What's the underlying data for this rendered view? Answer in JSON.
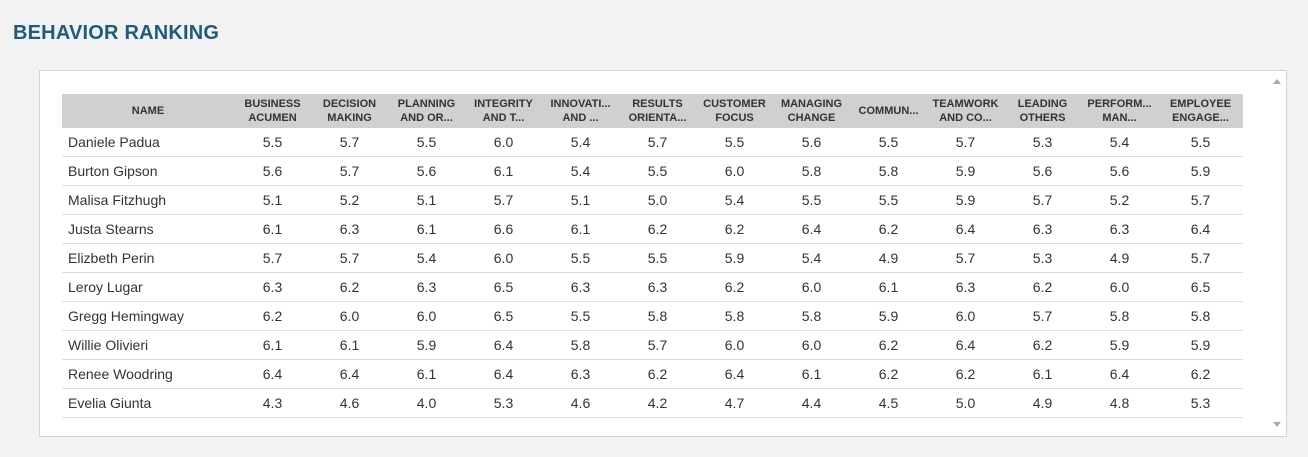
{
  "page": {
    "title": "BEHAVIOR RANKING"
  },
  "table": {
    "columns": [
      "NAME",
      "BUSINESS\nACUMEN",
      "DECISION\nMAKING",
      "PLANNING\nAND OR...",
      "INTEGRITY\nAND T...",
      "INNOVATI...\nAND ...",
      "RESULTS\nORIENTA...",
      "CUSTOMER\nFOCUS",
      "MANAGING\nCHANGE",
      "COMMUN...",
      "TEAMWORK\nAND CO...",
      "LEADING\nOTHERS",
      "PERFORM...\nMAN...",
      "EMPLOYEE\nENGAGE..."
    ],
    "rows": [
      [
        "Daniele Padua",
        "5.5",
        "5.7",
        "5.5",
        "6.0",
        "5.4",
        "5.7",
        "5.5",
        "5.6",
        "5.5",
        "5.7",
        "5.3",
        "5.4",
        "5.5"
      ],
      [
        "Burton Gipson",
        "5.6",
        "5.7",
        "5.6",
        "6.1",
        "5.4",
        "5.5",
        "6.0",
        "5.8",
        "5.8",
        "5.9",
        "5.6",
        "5.6",
        "5.9"
      ],
      [
        "Malisa Fitzhugh",
        "5.1",
        "5.2",
        "5.1",
        "5.7",
        "5.1",
        "5.0",
        "5.4",
        "5.5",
        "5.5",
        "5.9",
        "5.7",
        "5.2",
        "5.7"
      ],
      [
        "Justa Stearns",
        "6.1",
        "6.3",
        "6.1",
        "6.6",
        "6.1",
        "6.2",
        "6.2",
        "6.4",
        "6.2",
        "6.4",
        "6.3",
        "6.3",
        "6.4"
      ],
      [
        "Elizbeth Perin",
        "5.7",
        "5.7",
        "5.4",
        "6.0",
        "5.5",
        "5.5",
        "5.9",
        "5.4",
        "4.9",
        "5.7",
        "5.3",
        "4.9",
        "5.7"
      ],
      [
        "Leroy Lugar",
        "6.3",
        "6.2",
        "6.3",
        "6.5",
        "6.3",
        "6.3",
        "6.2",
        "6.0",
        "6.1",
        "6.3",
        "6.2",
        "6.0",
        "6.5"
      ],
      [
        "Gregg Hemingway",
        "6.2",
        "6.0",
        "6.0",
        "6.5",
        "5.5",
        "5.8",
        "5.8",
        "5.8",
        "5.9",
        "6.0",
        "5.7",
        "5.8",
        "5.8"
      ],
      [
        "Willie Olivieri",
        "6.1",
        "6.1",
        "5.9",
        "6.4",
        "5.8",
        "5.7",
        "6.0",
        "6.0",
        "6.2",
        "6.4",
        "6.2",
        "5.9",
        "5.9"
      ],
      [
        "Renee Woodring",
        "6.4",
        "6.4",
        "6.1",
        "6.4",
        "6.3",
        "6.2",
        "6.4",
        "6.1",
        "6.2",
        "6.2",
        "6.1",
        "6.4",
        "6.2"
      ],
      [
        "Evelia Giunta",
        "4.3",
        "4.6",
        "4.0",
        "5.3",
        "4.6",
        "4.2",
        "4.7",
        "4.4",
        "4.5",
        "5.0",
        "4.9",
        "4.8",
        "5.3"
      ]
    ]
  },
  "icons": {
    "scroll_up": "scroll-up-arrow-icon",
    "scroll_down": "scroll-down-arrow-icon"
  },
  "colors": {
    "title": "#1f5b7a",
    "header_bg": "#d0d0d0",
    "row_border": "#dddddd"
  }
}
